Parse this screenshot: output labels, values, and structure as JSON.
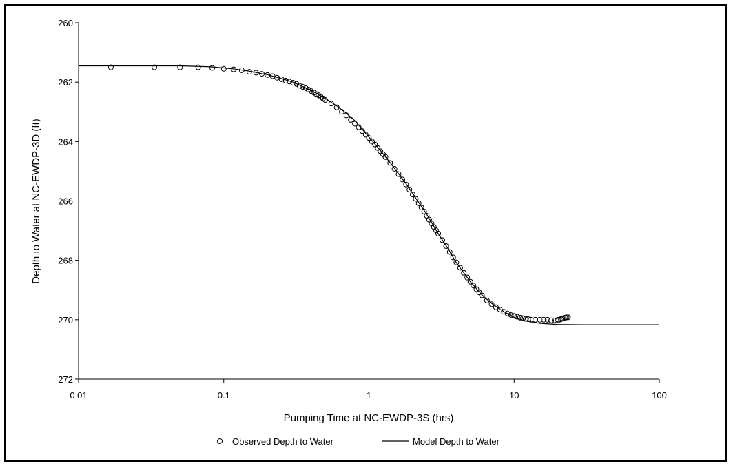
{
  "chart_data": {
    "type": "scatter",
    "xlabel": "Pumping Time at NC-EWDP-3S (hrs)",
    "ylabel": "Depth to Water at NC-EWDP-3D (ft)",
    "xscale": "log",
    "xlim": [
      0.01,
      100
    ],
    "ylim": [
      260,
      272
    ],
    "y_inverted": true,
    "x_ticks": [
      "0.01",
      "0.1",
      "1",
      "10",
      "100"
    ],
    "y_ticks": [
      "260",
      "262",
      "264",
      "266",
      "268",
      "270",
      "272"
    ],
    "grid": false,
    "legend_position": "bottom",
    "series": [
      {
        "name": "Observed Depth to Water",
        "kind": "scatter",
        "marker": "open-circle",
        "x": [
          0.0167,
          0.0333,
          0.05,
          0.0667,
          0.0833,
          0.1,
          0.117,
          0.133,
          0.15,
          0.167,
          0.183,
          0.2,
          0.217,
          0.233,
          0.25,
          0.267,
          0.283,
          0.3,
          0.317,
          0.333,
          0.35,
          0.367,
          0.383,
          0.4,
          0.417,
          0.433,
          0.45,
          0.467,
          0.483,
          0.5,
          0.55,
          0.6,
          0.65,
          0.7,
          0.75,
          0.8,
          0.85,
          0.9,
          0.95,
          1.0,
          1.05,
          1.1,
          1.15,
          1.2,
          1.25,
          1.3,
          1.4,
          1.5,
          1.6,
          1.7,
          1.8,
          1.9,
          2.0,
          2.1,
          2.2,
          2.3,
          2.4,
          2.5,
          2.6,
          2.7,
          2.8,
          2.9,
          3.0,
          3.2,
          3.4,
          3.6,
          3.8,
          4.0,
          4.25,
          4.5,
          4.75,
          5.0,
          5.25,
          5.5,
          5.75,
          6.0,
          6.5,
          7.0,
          7.5,
          8.0,
          8.5,
          9.0,
          9.5,
          10.0,
          10.5,
          11.0,
          11.5,
          12.0,
          12.5,
          13.0,
          14.0,
          15.0,
          16.0,
          17.0,
          18.0,
          19.0,
          20.0,
          20.5,
          21.0,
          21.5,
          22.0,
          22.5,
          23.0,
          23.5
        ],
        "y": [
          261.5,
          261.5,
          261.5,
          261.5,
          261.52,
          261.55,
          261.57,
          261.6,
          261.65,
          261.68,
          261.72,
          261.76,
          261.8,
          261.85,
          261.9,
          261.95,
          261.98,
          262.02,
          262.06,
          262.12,
          262.16,
          262.2,
          262.25,
          262.3,
          262.35,
          262.4,
          262.44,
          262.5,
          262.55,
          262.6,
          262.72,
          262.85,
          263.0,
          263.12,
          263.27,
          263.4,
          263.52,
          263.65,
          263.77,
          263.88,
          264.0,
          264.1,
          264.22,
          264.33,
          264.43,
          264.52,
          264.72,
          264.92,
          265.1,
          265.28,
          265.45,
          265.62,
          265.78,
          265.93,
          266.08,
          266.22,
          266.36,
          266.5,
          266.63,
          266.76,
          266.88,
          266.99,
          267.1,
          267.32,
          267.52,
          267.72,
          267.9,
          268.07,
          268.25,
          268.42,
          268.58,
          268.72,
          268.85,
          268.97,
          269.08,
          269.18,
          269.35,
          269.48,
          269.58,
          269.66,
          269.73,
          269.79,
          269.84,
          269.87,
          269.9,
          269.93,
          269.95,
          269.97,
          269.98,
          270.0,
          270.0,
          270.0,
          270.0,
          270.0,
          270.02,
          270.02,
          270.0,
          270.0,
          269.98,
          269.96,
          269.94,
          269.93,
          269.92,
          269.92
        ]
      },
      {
        "name": "Model Depth to Water",
        "kind": "line",
        "x": [
          0.01,
          0.05,
          0.08,
          0.1,
          0.12,
          0.15,
          0.2,
          0.25,
          0.3,
          0.4,
          0.5,
          0.6,
          0.7,
          0.8,
          1.0,
          1.2,
          1.5,
          1.8,
          2.0,
          2.5,
          3.0,
          3.5,
          4.0,
          5.0,
          6.0,
          7.0,
          8.0,
          10.0,
          12.0,
          15.0,
          20.0,
          30.0,
          50.0,
          100.0
        ],
        "y": [
          261.45,
          261.45,
          261.48,
          261.52,
          261.56,
          261.63,
          261.75,
          261.88,
          262.0,
          262.28,
          262.55,
          262.8,
          263.05,
          263.3,
          263.85,
          264.3,
          264.9,
          265.42,
          265.75,
          266.45,
          267.1,
          267.6,
          268.08,
          268.72,
          269.16,
          269.45,
          269.65,
          269.92,
          270.04,
          270.12,
          270.16,
          270.17,
          270.17,
          270.17
        ]
      }
    ]
  }
}
